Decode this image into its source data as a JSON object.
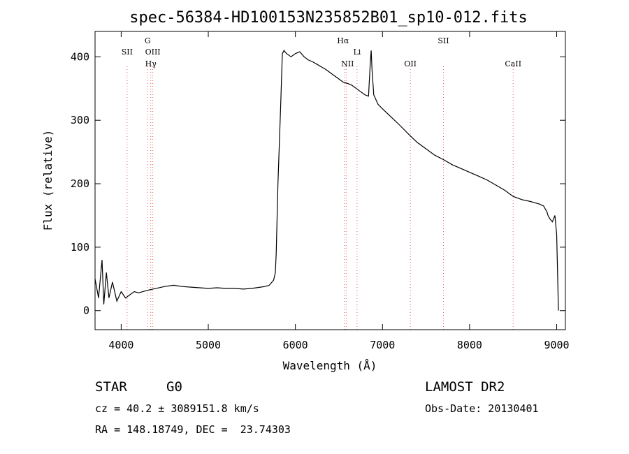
{
  "chart_data": {
    "type": "line",
    "title": "spec-56384-HD100153N235852B01_sp10-012.fits",
    "xlabel": "Wavelength (Å)",
    "ylabel": "Flux (relative)",
    "xlim": [
      3700,
      9100
    ],
    "ylim": [
      -30,
      440
    ],
    "x_ticks": [
      4000,
      5000,
      6000,
      7000,
      8000,
      9000
    ],
    "y_ticks": [
      0,
      100,
      200,
      300,
      400
    ],
    "grid": false,
    "series": [
      {
        "x": [
          3700,
          3740,
          3780,
          3800,
          3830,
          3860,
          3900,
          3950,
          4000,
          4050,
          4100,
          4150,
          4200,
          4300,
          4400,
          4500,
          4600,
          4700,
          4800,
          4900,
          5000,
          5100,
          5200,
          5300,
          5400,
          5500,
          5550,
          5600,
          5650,
          5700,
          5750,
          5770,
          5780,
          5800,
          5830,
          5850,
          5870,
          5880,
          5900,
          5950,
          6000,
          6050,
          6100,
          6150,
          6200,
          6250,
          6300,
          6350,
          6400,
          6450,
          6500,
          6550,
          6600,
          6650,
          6700,
          6750,
          6800,
          6840,
          6860,
          6870,
          6880,
          6900,
          6950,
          7000,
          7100,
          7200,
          7300,
          7400,
          7500,
          7600,
          7700,
          7800,
          7900,
          8000,
          8100,
          8200,
          8300,
          8400,
          8500,
          8600,
          8700,
          8800,
          8850,
          8870,
          8890,
          8900,
          8920,
          8950,
          8980,
          9000,
          9010,
          9020
        ],
        "y": [
          50,
          20,
          80,
          10,
          60,
          20,
          45,
          15,
          30,
          20,
          25,
          30,
          28,
          32,
          35,
          38,
          40,
          38,
          37,
          36,
          35,
          36,
          35,
          35,
          34,
          35,
          36,
          37,
          38,
          40,
          48,
          60,
          90,
          200,
          320,
          405,
          410,
          408,
          405,
          400,
          405,
          408,
          400,
          395,
          392,
          388,
          384,
          380,
          375,
          370,
          365,
          360,
          358,
          355,
          350,
          345,
          340,
          338,
          390,
          410,
          380,
          340,
          325,
          318,
          305,
          292,
          278,
          265,
          255,
          245,
          238,
          230,
          224,
          218,
          212,
          206,
          198,
          190,
          180,
          175,
          172,
          168,
          165,
          160,
          155,
          150,
          145,
          140,
          150,
          120,
          60,
          0
        ]
      }
    ],
    "line_markers": [
      {
        "label": "SII",
        "x": 4068
      },
      {
        "label": "G",
        "x": 4304
      },
      {
        "label": "OIII",
        "x": 4363
      },
      {
        "label": "Hγ",
        "x": 4340
      },
      {
        "label": "Hα",
        "x": 6563
      },
      {
        "label": "NII",
        "x": 6583
      },
      {
        "label": "Li",
        "x": 6708
      },
      {
        "label": "OII",
        "x": 7320
      },
      {
        "label": "SII",
        "x": 7700
      },
      {
        "label": "CaII",
        "x": 8500
      }
    ]
  },
  "info": {
    "object_class": "STAR",
    "subclass": "G0",
    "survey": "LAMOST DR2",
    "cz": "cz = 40.2 ± 3089151.8 km/s",
    "obs_date": "Obs-Date: 20130401",
    "coords": "RA = 148.18749, DEC =  23.74303"
  },
  "colors": {
    "spectrum": "#000000",
    "marker_line": "#e06060",
    "axis": "#000000"
  }
}
